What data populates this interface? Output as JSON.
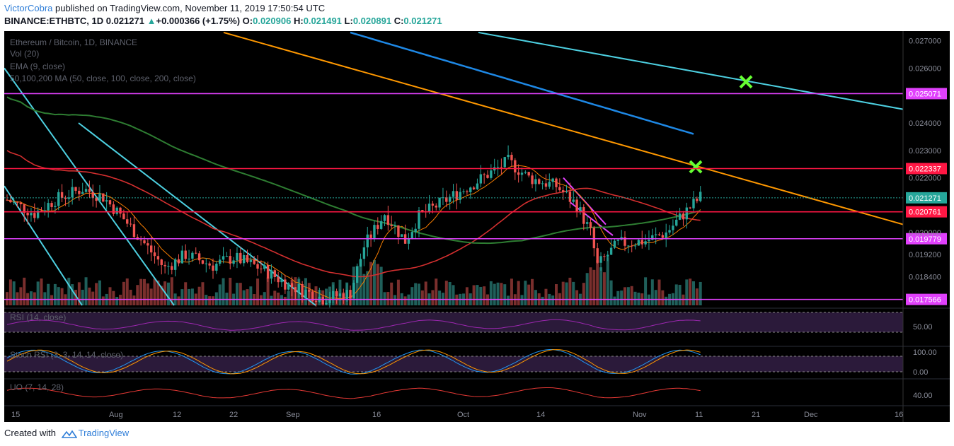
{
  "header": {
    "author": "VictorCobra",
    "published_text": "published on TradingView.com, November 11, 2019 17:50:54 UTC"
  },
  "ohlc": {
    "symbol": "BINANCE:ETHBTC, 1D",
    "last": "0.021271",
    "change_arrow": "▲",
    "change": "+0.000366 (+1.75%)",
    "o_label": "O:",
    "o": "0.020906",
    "h_label": "H:",
    "h": "0.021491",
    "l_label": "L:",
    "l": "0.020891",
    "c_label": "C:",
    "c": "0.021271"
  },
  "legend": {
    "title": "Ethereum / Bitcoin, 1D, BINANCE",
    "vol": "Vol (20)",
    "ema": "EMA (9, close)",
    "ma": "50,100,200 MA (50, close, 100, close, 200, close)"
  },
  "panes": {
    "rsi": "RSI (14, close)",
    "stoch": "Stoch RSI (3, 3, 14, 14, close)",
    "uo": "UO (7, 14, 28)"
  },
  "footer": {
    "created": "Created with",
    "brand": "TradingView"
  },
  "colors": {
    "up": "#26a69a",
    "down": "#ef5350",
    "ema": "#f57c00",
    "ma50": "#d32f2f",
    "ma100": "#2e7d32",
    "ma200": "#1e88e5",
    "magenta": "#e040fb",
    "cyan": "#4dd0e1",
    "orange": "#ff9800",
    "red_level": "#ff1744",
    "cross": "#66ff33"
  },
  "chart_data": [
    {
      "type": "candlestick",
      "title": "Ethereum / Bitcoin, 1D, BINANCE",
      "x_ticks": [
        "15",
        "Aug",
        "12",
        "22",
        "Sep",
        "16",
        "Oct",
        "14",
        "Nov",
        "11",
        "21",
        "Dec",
        "16"
      ],
      "y_ticks": [
        "0.027000",
        "0.026000",
        "0.025000",
        "0.024000",
        "0.023000",
        "0.022000",
        "0.021271",
        "0.020761",
        "0.020000",
        "0.019779",
        "0.019200",
        "0.018400",
        "0.017566"
      ],
      "y_range": [
        0.01735,
        0.02735
      ],
      "price_levels": [
        {
          "label": "0.025071",
          "value": 0.025071,
          "color": "#e040fb"
        },
        {
          "label": "0.022337",
          "value": 0.022337,
          "color": "#ff1744"
        },
        {
          "label": "0.021271",
          "value": 0.021271,
          "color": "#26a69a",
          "style": "dotted",
          "current": true
        },
        {
          "label": "0.020761",
          "value": 0.020761,
          "color": "#ff1744"
        },
        {
          "label": "0.019779",
          "value": 0.019779,
          "color": "#e040fb"
        },
        {
          "label": "0.017566",
          "value": 0.017566,
          "color": "#e040fb"
        }
      ],
      "series": [
        {
          "name": "EMA (9, close)",
          "color": "#f57c00"
        },
        {
          "name": "MA 50",
          "color": "#d32f2f"
        },
        {
          "name": "MA 100",
          "color": "#2e7d32"
        },
        {
          "name": "MA 200",
          "color": "#1e88e5"
        },
        {
          "name": "Vol (20)"
        }
      ],
      "annotations": [
        "cross marker at 0.0224 (early Nov)",
        "cross marker at 0.0255 (21 Nov)"
      ]
    },
    {
      "type": "line",
      "title": "RSI (14, close)",
      "y_ticks": [
        "50.00"
      ],
      "bands": [
        70,
        30
      ]
    },
    {
      "type": "line",
      "title": "Stoch RSI (3, 3, 14, 14, close)",
      "y_ticks": [
        "100.00",
        "0.00"
      ],
      "bands": [
        80,
        20
      ]
    },
    {
      "type": "line",
      "title": "UO (7, 14, 28)",
      "y_ticks": [
        "40.00"
      ]
    }
  ]
}
